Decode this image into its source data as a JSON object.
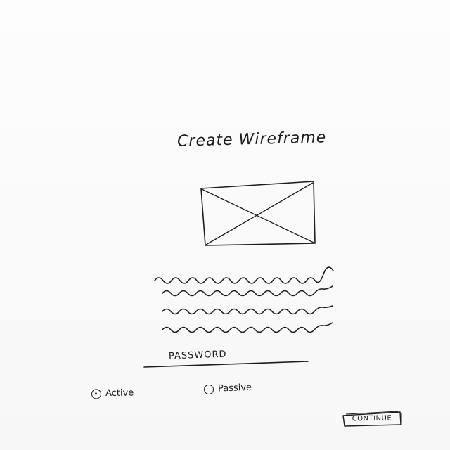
{
  "page": {
    "title": "Create Wireframe"
  },
  "image_placeholder": {
    "icon": "image-placeholder-icon"
  },
  "text_block": {
    "line_count": 4
  },
  "form": {
    "password_label": "PASSWORD",
    "radio_options": [
      {
        "label": "Active",
        "selected": true
      },
      {
        "label": "Passive",
        "selected": false
      }
    ],
    "continue_label": "CONTINUE"
  },
  "colors": {
    "ink": "#1c1c1c",
    "paper": "#ffffff"
  }
}
